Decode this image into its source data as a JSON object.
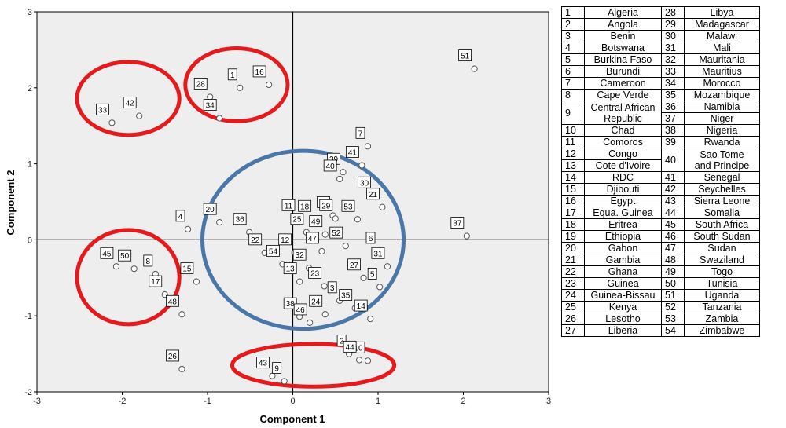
{
  "colors": {
    "plot_bg": "#eeeeee",
    "red_ellipse": "#e41a1c",
    "blue_ellipse": "#4a77a8",
    "point": "#555555"
  },
  "chart_data": {
    "type": "scatter",
    "title": "",
    "xlabel": "Component 1",
    "ylabel": "Component 2",
    "xlim": [
      -3,
      3
    ],
    "ylim": [
      -2,
      3
    ],
    "xticks": [
      -3,
      -2,
      -1,
      0,
      1,
      2,
      3
    ],
    "yticks": [
      -2,
      -1,
      0,
      1,
      2,
      3
    ],
    "reference_lines": {
      "x": 0,
      "y": 0
    },
    "points": [
      {
        "x": -2.12,
        "y": 1.54,
        "label": "33"
      },
      {
        "x": -1.8,
        "y": 1.63,
        "label": "42"
      },
      {
        "x": -0.97,
        "y": 1.88,
        "label": "28"
      },
      {
        "x": -0.62,
        "y": 2.0,
        "label": "1"
      },
      {
        "x": -0.86,
        "y": 1.6,
        "label": "34"
      },
      {
        "x": -0.28,
        "y": 2.04,
        "label": "16"
      },
      {
        "x": 2.13,
        "y": 2.25,
        "label": "51"
      },
      {
        "x": 0.88,
        "y": 1.23,
        "label": "7"
      },
      {
        "x": 0.81,
        "y": 0.98,
        "label": "41"
      },
      {
        "x": 0.59,
        "y": 0.89,
        "label": "39"
      },
      {
        "x": 0.55,
        "y": 0.8,
        "label": "40"
      },
      {
        "x": 0.95,
        "y": 0.58,
        "label": "30"
      },
      {
        "x": 1.05,
        "y": 0.43,
        "label": "21"
      },
      {
        "x": -0.86,
        "y": 0.23,
        "label": "20"
      },
      {
        "x": -0.51,
        "y": 0.1,
        "label": "36"
      },
      {
        "x": -1.23,
        "y": 0.14,
        "label": "4"
      },
      {
        "x": 0.06,
        "y": 0.28,
        "label": "11"
      },
      {
        "x": 0.25,
        "y": 0.27,
        "label": "18"
      },
      {
        "x": 0.47,
        "y": 0.32,
        "label": "19"
      },
      {
        "x": 0.5,
        "y": 0.28,
        "label": "29"
      },
      {
        "x": 0.76,
        "y": 0.27,
        "label": "53"
      },
      {
        "x": 0.16,
        "y": 0.1,
        "label": "25"
      },
      {
        "x": 0.38,
        "y": 0.07,
        "label": "49"
      },
      {
        "x": 2.04,
        "y": 0.05,
        "label": "37"
      },
      {
        "x": -0.33,
        "y": -0.17,
        "label": "22"
      },
      {
        "x": 0.02,
        "y": -0.17,
        "label": "12"
      },
      {
        "x": 0.34,
        "y": -0.15,
        "label": "47"
      },
      {
        "x": 0.62,
        "y": -0.08,
        "label": "52"
      },
      {
        "x": 1.0,
        "y": -0.15,
        "label": "6"
      },
      {
        "x": 1.11,
        "y": -0.35,
        "label": "31"
      },
      {
        "x": 0.19,
        "y": -0.37,
        "label": "32"
      },
      {
        "x": -0.12,
        "y": -0.32,
        "label": "54"
      },
      {
        "x": -2.07,
        "y": -0.35,
        "label": "45"
      },
      {
        "x": -1.86,
        "y": -0.38,
        "label": "50"
      },
      {
        "x": -1.61,
        "y": -0.45,
        "label": "8"
      },
      {
        "x": -1.5,
        "y": -0.72,
        "label": "17"
      },
      {
        "x": -1.13,
        "y": -0.55,
        "label": "15"
      },
      {
        "x": 0.08,
        "y": -0.55,
        "label": "13"
      },
      {
        "x": 0.37,
        "y": -0.61,
        "label": "23"
      },
      {
        "x": 0.83,
        "y": -0.5,
        "label": "27"
      },
      {
        "x": 1.02,
        "y": -0.62,
        "label": "5"
      },
      {
        "x": -1.3,
        "y": -0.98,
        "label": "48"
      },
      {
        "x": 0.38,
        "y": -0.98,
        "label": "24"
      },
      {
        "x": 0.55,
        "y": -0.8,
        "label": "3"
      },
      {
        "x": 0.73,
        "y": -0.9,
        "label": "35"
      },
      {
        "x": 0.91,
        "y": -1.04,
        "label": "14"
      },
      {
        "x": 0.08,
        "y": -1.01,
        "label": "38"
      },
      {
        "x": 0.2,
        "y": -1.09,
        "label": "46"
      },
      {
        "x": 0.88,
        "y": -1.59,
        "label": "10"
      },
      {
        "x": -1.3,
        "y": -1.7,
        "label": "26"
      },
      {
        "x": -0.24,
        "y": -1.79,
        "label": "43"
      },
      {
        "x": -0.1,
        "y": -1.86,
        "label": "9"
      },
      {
        "x": 0.66,
        "y": -1.5,
        "label": "2"
      },
      {
        "x": 0.78,
        "y": -1.58,
        "label": "44"
      }
    ],
    "red_ellipses": [
      {
        "cx": -1.93,
        "cy": 1.86,
        "rx": 0.6,
        "ry": 0.48
      },
      {
        "cx": -0.66,
        "cy": 2.04,
        "rx": 0.6,
        "ry": 0.48
      },
      {
        "cx": -1.93,
        "cy": -0.49,
        "rx": 0.6,
        "ry": 0.62
      },
      {
        "cx": 0.24,
        "cy": -1.65,
        "rx": 0.95,
        "ry": 0.28
      }
    ],
    "blue_ellipse": {
      "cx": 0.12,
      "cy": 0.0,
      "rx": 1.18,
      "ry": 1.17
    }
  },
  "table": {
    "rows": [
      {
        "n1": "1",
        "c1": "Algeria",
        "n2": "28",
        "c2": "Libya"
      },
      {
        "n1": "2",
        "c1": "Angola",
        "n2": "29",
        "c2": "Madagascar"
      },
      {
        "n1": "3",
        "c1": "Benin",
        "n2": "30",
        "c2": "Malawi"
      },
      {
        "n1": "4",
        "c1": "Botswana",
        "n2": "31",
        "c2": "Mali"
      },
      {
        "n1": "5",
        "c1": "Burkina Faso",
        "n2": "32",
        "c2": "Mauritania"
      },
      {
        "n1": "6",
        "c1": "Burundi",
        "n2": "33",
        "c2": "Mauritius"
      },
      {
        "n1": "7",
        "c1": "Cameroon",
        "n2": "34",
        "c2": "Morocco"
      },
      {
        "n1": "8",
        "c1": "Cape Verde",
        "n2": "35",
        "c2": "Mozambique"
      },
      {
        "n1": "9",
        "c1a": "Central African",
        "c1b": "Republic",
        "n2": "36",
        "c2": "Namibia",
        "n2b": "37",
        "c2b": "Niger"
      },
      {
        "n1": "10",
        "c1": "Chad",
        "n2": "38",
        "c2": "Nigeria"
      },
      {
        "n1": "11",
        "c1": "Comoros",
        "n2": "39",
        "c2": "Rwanda"
      },
      {
        "n1": "12",
        "c1": "Congo",
        "n1b": "13",
        "c1b": "Cote d'Ivoire",
        "n2": "40",
        "c2a": "Sao Tome",
        "c2b": "and Principe"
      },
      {
        "n1": "14",
        "c1": "RDC",
        "n2": "41",
        "c2": "Senegal"
      },
      {
        "n1": "15",
        "c1": "Djibouti",
        "n2": "42",
        "c2": "Seychelles"
      },
      {
        "n1": "16",
        "c1": "Egypt",
        "n2": "43",
        "c2": "Sierra Leone"
      },
      {
        "n1": "17",
        "c1": "Equa. Guinea",
        "n2": "44",
        "c2": "Somalia"
      },
      {
        "n1": "18",
        "c1": "Eritrea",
        "n2": "45",
        "c2": "South Africa"
      },
      {
        "n1": "19",
        "c1": "Ethiopia",
        "n2": "46",
        "c2": "South Sudan"
      },
      {
        "n1": "20",
        "c1": "Gabon",
        "n2": "47",
        "c2": "Sudan"
      },
      {
        "n1": "21",
        "c1": "Gambia",
        "n2": "48",
        "c2": "Swaziland"
      },
      {
        "n1": "22",
        "c1": "Ghana",
        "n2": "49",
        "c2": "Togo"
      },
      {
        "n1": "23",
        "c1": "Guinea",
        "n2": "50",
        "c2": "Tunisia"
      },
      {
        "n1": "24",
        "c1": "Guinea-Bissau",
        "n2": "51",
        "c2": "Uganda"
      },
      {
        "n1": "25",
        "c1": "Kenya",
        "n2": "52",
        "c2": "Tanzania"
      },
      {
        "n1": "26",
        "c1": "Lesotho",
        "n2": "53",
        "c2": "Zambia"
      },
      {
        "n1": "27",
        "c1": "Liberia",
        "n2": "54",
        "c2": "Zimbabwe"
      }
    ]
  }
}
